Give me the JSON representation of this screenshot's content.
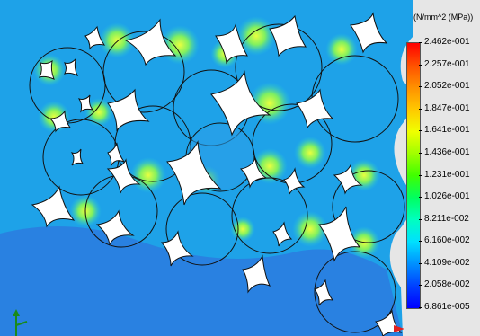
{
  "legend": {
    "unit": "(N/mm^2 (MPa))",
    "labels": [
      "2.462e-001",
      "2.257e-001",
      "2.052e-001",
      "1.847e-001",
      "1.641e-001",
      "1.436e-001",
      "1.231e-001",
      "1.026e-001",
      "8.211e-002",
      "6.160e-002",
      "4.109e-002",
      "2.058e-002",
      "6.861e-005"
    ],
    "colors": [
      "#ff0000",
      "#ff5000",
      "#ff9000",
      "#ffc800",
      "#f0ff00",
      "#a0ff00",
      "#40ff00",
      "#00ff60",
      "#00ffc0",
      "#00e0ff",
      "#0090ff",
      "#0040ff",
      "#0000ff"
    ]
  },
  "plot": {
    "background_color": "#1ea2e8",
    "lower_color": "#2a7de0",
    "hot_color": "#9ef05a",
    "cusp_color": "#ffffff",
    "outline_color": "#111111"
  },
  "triad": {
    "icon": "coordinate-triad-icon"
  }
}
